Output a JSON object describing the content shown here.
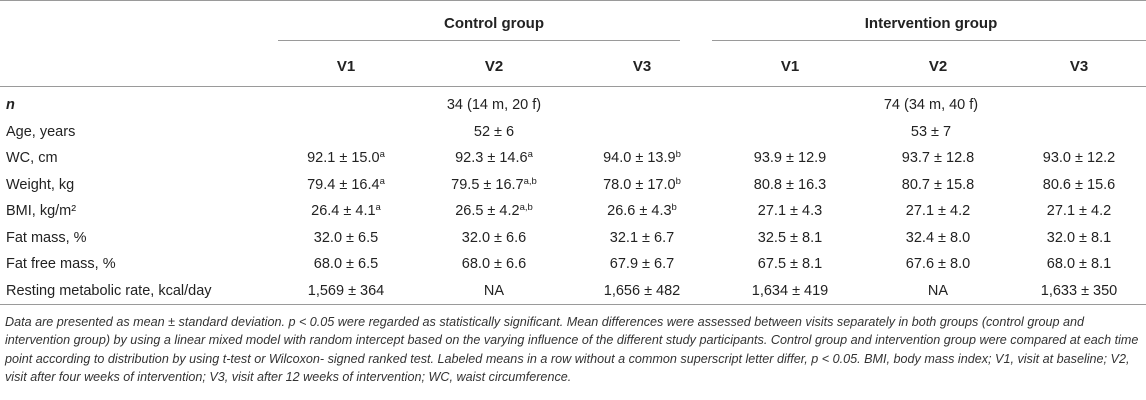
{
  "table": {
    "groups": {
      "control": "Control group",
      "intervention": "Intervention group"
    },
    "visits": [
      "V1",
      "V2",
      "V3",
      "V1",
      "V2",
      "V3"
    ],
    "n_row": {
      "label": "n",
      "control": "34 (14 m, 20 f)",
      "intervention": "74 (34 m, 40 f)"
    },
    "age_row": {
      "label": "Age, years",
      "control": "52 ± 6",
      "intervention": "53 ± 7"
    },
    "rows": [
      {
        "label": "WC, cm",
        "cells": [
          {
            "v": "92.1 ± 15.0",
            "s": "a"
          },
          {
            "v": "92.3 ± 14.6",
            "s": "a"
          },
          {
            "v": "94.0 ± 13.9",
            "s": "b"
          },
          {
            "v": "93.9 ± 12.9",
            "s": ""
          },
          {
            "v": "93.7 ± 12.8",
            "s": ""
          },
          {
            "v": "93.0 ± 12.2",
            "s": ""
          }
        ]
      },
      {
        "label": "Weight, kg",
        "cells": [
          {
            "v": "79.4 ± 16.4",
            "s": "a"
          },
          {
            "v": "79.5 ± 16.7",
            "s": "a,b"
          },
          {
            "v": "78.0 ± 17.0",
            "s": "b"
          },
          {
            "v": "80.8 ± 16.3",
            "s": ""
          },
          {
            "v": "80.7 ± 15.8",
            "s": ""
          },
          {
            "v": "80.6 ± 15.6",
            "s": ""
          }
        ]
      },
      {
        "label": "BMI, kg/m²",
        "cells": [
          {
            "v": "26.4 ± 4.1",
            "s": "a"
          },
          {
            "v": "26.5 ± 4.2",
            "s": "a,b"
          },
          {
            "v": "26.6 ± 4.3",
            "s": "b"
          },
          {
            "v": "27.1 ± 4.3",
            "s": ""
          },
          {
            "v": "27.1 ± 4.2",
            "s": ""
          },
          {
            "v": "27.1 ± 4.2",
            "s": ""
          }
        ]
      },
      {
        "label": "Fat mass, %",
        "cells": [
          {
            "v": "32.0 ± 6.5",
            "s": ""
          },
          {
            "v": "32.0 ± 6.6",
            "s": ""
          },
          {
            "v": "32.1 ± 6.7",
            "s": ""
          },
          {
            "v": "32.5 ± 8.1",
            "s": ""
          },
          {
            "v": "32.4 ± 8.0",
            "s": ""
          },
          {
            "v": "32.0 ± 8.1",
            "s": ""
          }
        ]
      },
      {
        "label": "Fat free mass, %",
        "cells": [
          {
            "v": "68.0 ± 6.5",
            "s": ""
          },
          {
            "v": "68.0 ± 6.6",
            "s": ""
          },
          {
            "v": "67.9 ± 6.7",
            "s": ""
          },
          {
            "v": "67.5 ± 8.1",
            "s": ""
          },
          {
            "v": "67.6 ± 8.0",
            "s": ""
          },
          {
            "v": "68.0 ± 8.1",
            "s": ""
          }
        ]
      },
      {
        "label": "Resting metabolic rate, kcal/day",
        "cells": [
          {
            "v": "1,569 ± 364",
            "s": ""
          },
          {
            "v": "NA",
            "s": ""
          },
          {
            "v": "1,656 ± 482",
            "s": ""
          },
          {
            "v": "1,634 ± 419",
            "s": ""
          },
          {
            "v": "NA",
            "s": ""
          },
          {
            "v": "1,633 ± 350",
            "s": ""
          }
        ]
      }
    ]
  },
  "footnote": "Data are presented as mean ± standard deviation. p < 0.05 were regarded as statistically significant. Mean differences were assessed between visits separately in both groups (control group and intervention group) by using a linear mixed model with random intercept based on the varying influence of the different study participants. Control group and intervention group were compared at each time point according to distribution by using t-test or Wilcoxon- signed ranked test. Labeled means in a row without a common superscript letter differ, p < 0.05. BMI, body mass index; V1, visit at baseline; V2, visit after four weeks of intervention; V3, visit after 12 weeks of intervention; WC, waist circumference."
}
